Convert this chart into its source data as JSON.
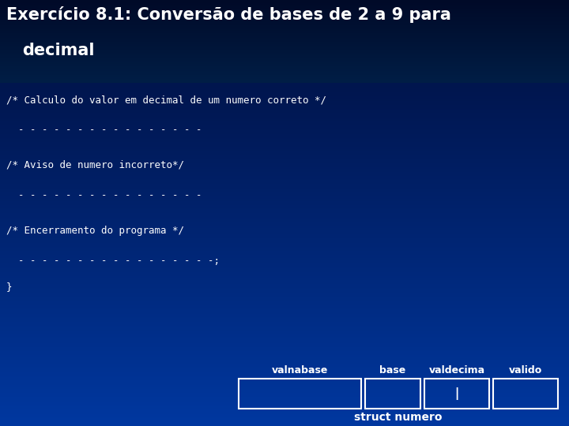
{
  "title_line1": "Exercício 8.1: Conversão de bases de 2 a 9 para",
  "title_line2": "  decimal",
  "bg_color_top": "#000d3a",
  "bg_color_mid": "#0038a0",
  "bg_color_bot": "#0038a0",
  "title_text_color": "#ffffff",
  "body_text_color": "#ffffff",
  "comment1": "/* Calculo do valor em decimal de um numero correto */",
  "dashes1": "  - - - - - - - - - - - - - - - -",
  "comment2": "/* Aviso de numero incorreto*/",
  "dashes2": "  - - - - - - - - - - - - - - - -",
  "comment3": "/* Encerramento do programa */",
  "dashes3": "  - - - - - - - - - - - - - - - - -;",
  "closing_brace": "}",
  "struct_labels": [
    "valnabase",
    "base",
    "valdecima",
    "valido"
  ],
  "struct_title": "struct numero",
  "struct_box_color": "#ffffff",
  "struct_fill_color": "#0038a0",
  "struct_pipe": "|",
  "title_fontsize": 15,
  "code_fontsize": 9,
  "struct_label_fontsize": 9,
  "struct_title_fontsize": 10
}
